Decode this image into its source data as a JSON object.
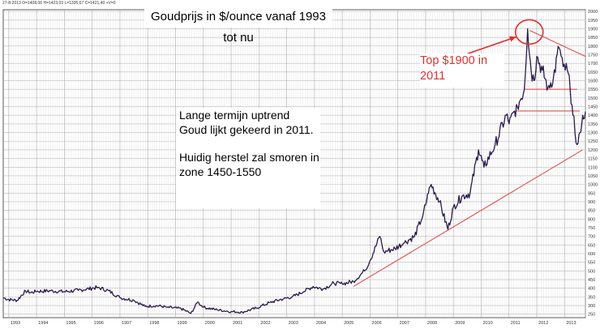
{
  "header_text": "27-8-2013  O=1408,06  H=1423,03  L=1395,67  C=1421,40  +V=0",
  "chart_data": {
    "type": "line",
    "title": "Goudprijs in $/ounce vanaf 1993 tot nu",
    "xlabel": "",
    "ylabel": "",
    "x_ticks": [
      "1993",
      "1994",
      "1995",
      "1996",
      "1997",
      "1998",
      "1999",
      "2000",
      "2001",
      "2002",
      "2003",
      "2004",
      "2005",
      "2006",
      "2007",
      "2008",
      "2009",
      "2010",
      "2011",
      "2012",
      "2013"
    ],
    "xlim": [
      1992.8,
      2013.75
    ],
    "y_ticks": [
      250,
      300,
      350,
      400,
      450,
      500,
      550,
      600,
      650,
      700,
      750,
      800,
      850,
      900,
      950,
      1000,
      1050,
      1100,
      1150,
      1200,
      1250,
      1300,
      1350,
      1400,
      1450,
      1500,
      1550,
      1600,
      1650,
      1700,
      1750,
      1800,
      1850,
      1900,
      1950,
      2000
    ],
    "ylim": [
      230,
      2010
    ],
    "grid": true,
    "series": [
      {
        "color": "#2a1a4a",
        "points": [
          [
            1992.8,
            345
          ],
          [
            1993.0,
            335
          ],
          [
            1993.3,
            330
          ],
          [
            1993.6,
            385
          ],
          [
            1993.8,
            375
          ],
          [
            1994.0,
            382
          ],
          [
            1994.5,
            385
          ],
          [
            1995.0,
            380
          ],
          [
            1995.5,
            388
          ],
          [
            1996.0,
            400
          ],
          [
            1996.2,
            405
          ],
          [
            1996.6,
            385
          ],
          [
            1997.0,
            345
          ],
          [
            1997.5,
            330
          ],
          [
            1997.9,
            295
          ],
          [
            1998.3,
            300
          ],
          [
            1998.7,
            290
          ],
          [
            1999.2,
            282
          ],
          [
            1999.55,
            255
          ],
          [
            1999.8,
            320
          ],
          [
            2000.0,
            290
          ],
          [
            2000.5,
            275
          ],
          [
            2001.0,
            265
          ],
          [
            2001.4,
            262
          ],
          [
            2001.9,
            285
          ],
          [
            2002.4,
            318
          ],
          [
            2002.9,
            340
          ],
          [
            2003.2,
            350
          ],
          [
            2003.6,
            380
          ],
          [
            2003.95,
            410
          ],
          [
            2004.3,
            395
          ],
          [
            2004.7,
            430
          ],
          [
            2005.0,
            425
          ],
          [
            2005.4,
            440
          ],
          [
            2005.8,
            500
          ],
          [
            2006.0,
            560
          ],
          [
            2006.35,
            700
          ],
          [
            2006.5,
            610
          ],
          [
            2006.9,
            630
          ],
          [
            2007.2,
            660
          ],
          [
            2007.6,
            700
          ],
          [
            2007.9,
            820
          ],
          [
            2008.1,
            950
          ],
          [
            2008.2,
            1000
          ],
          [
            2008.5,
            900
          ],
          [
            2008.8,
            740
          ],
          [
            2009.0,
            870
          ],
          [
            2009.3,
            930
          ],
          [
            2009.6,
            950
          ],
          [
            2009.9,
            1200
          ],
          [
            2010.1,
            1100
          ],
          [
            2010.5,
            1230
          ],
          [
            2010.9,
            1400
          ],
          [
            2011.0,
            1350
          ],
          [
            2011.3,
            1450
          ],
          [
            2011.55,
            1550
          ],
          [
            2011.67,
            1900
          ],
          [
            2011.8,
            1650
          ],
          [
            2011.9,
            1600
          ],
          [
            2012.0,
            1740
          ],
          [
            2012.2,
            1660
          ],
          [
            2012.4,
            1560
          ],
          [
            2012.6,
            1620
          ],
          [
            2012.8,
            1790
          ],
          [
            2012.95,
            1680
          ],
          [
            2013.1,
            1660
          ],
          [
            2013.2,
            1550
          ],
          [
            2013.3,
            1400
          ],
          [
            2013.45,
            1230
          ],
          [
            2013.55,
            1300
          ],
          [
            2013.65,
            1400
          ],
          [
            2013.75,
            1421
          ]
        ]
      }
    ],
    "lines": [
      {
        "color": "#e05050",
        "from": [
          2005.4,
          410
        ],
        "to": [
          2013.65,
          1200
        ]
      },
      {
        "color": "#e05050",
        "from": [
          2011.75,
          1890
        ],
        "to": [
          2013.75,
          1740
        ]
      },
      {
        "color": "#e05050",
        "from": [
          2011.55,
          1550
        ],
        "to": [
          2013.45,
          1550
        ]
      },
      {
        "color": "#e05050",
        "from": [
          2011.25,
          1425
        ],
        "to": [
          2013.55,
          1425
        ]
      }
    ],
    "annotations": [
      {
        "id": "top",
        "text": "Top $1900 in 2011",
        "color": "#e03030"
      },
      {
        "id": "trend",
        "paragraphs": [
          "Lange termijn uptrend Goud lijkt gekeerd in 2011.",
          "Huidig herstel zal smoren in zone 1450-1550"
        ],
        "color": "#000000"
      }
    ]
  }
}
